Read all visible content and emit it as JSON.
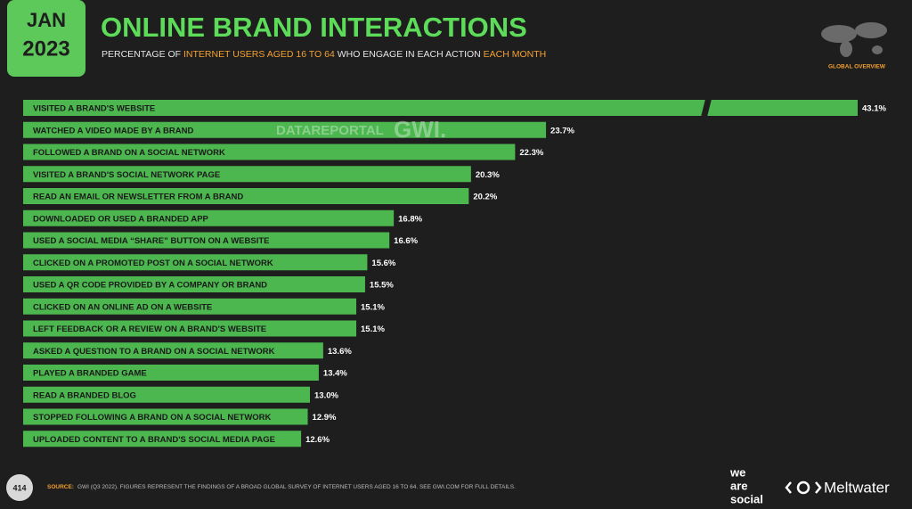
{
  "header": {
    "month": "JAN",
    "year": "2023",
    "title": "ONLINE BRAND INTERACTIONS",
    "subtitle": [
      "PERCENTAGE OF ",
      "INTERNET USERS AGED 16 TO 64",
      " WHO ENGAGE IN EACH ACTION ",
      "EACH MONTH"
    ],
    "region": "GLOBAL OVERVIEW"
  },
  "watermark": {
    "left": "DATAREPORTAL",
    "right": "GWI."
  },
  "chart_data": {
    "type": "bar",
    "orientation": "horizontal",
    "color": "#4cb74f",
    "categories": [
      "VISITED A BRAND'S WEBSITE",
      "WATCHED A VIDEO MADE BY A BRAND",
      "FOLLOWED A BRAND ON A SOCIAL NETWORK",
      "VISITED A BRAND'S SOCIAL NETWORK PAGE",
      "READ AN EMAIL OR NEWSLETTER FROM A BRAND",
      "DOWNLOADED OR USED A BRANDED APP",
      "USED A SOCIAL MEDIA “SHARE” BUTTON ON A WEBSITE",
      "CLICKED ON A PROMOTED POST ON A SOCIAL NETWORK",
      "USED A QR CODE PROVIDED BY A COMPANY OR BRAND",
      "CLICKED ON AN ONLINE AD ON A WEBSITE",
      "LEFT FEEDBACK OR A REVIEW ON A BRAND'S WEBSITE",
      "ASKED A QUESTION TO A BRAND ON A SOCIAL NETWORK",
      "PLAYED A BRANDED GAME",
      "READ A BRANDED BLOG",
      "STOPPED FOLLOWING A BRAND ON A SOCIAL NETWORK",
      "UPLOADED CONTENT TO A BRAND'S SOCIAL MEDIA PAGE"
    ],
    "values": [
      43.1,
      23.7,
      22.3,
      20.3,
      20.2,
      16.8,
      16.6,
      15.6,
      15.5,
      15.1,
      15.1,
      13.6,
      13.4,
      13.0,
      12.9,
      12.6
    ],
    "value_labels": [
      "43.1%",
      "23.7%",
      "22.3%",
      "20.3%",
      "20.2%",
      "16.8%",
      "16.6%",
      "15.6%",
      "15.5%",
      "15.1%",
      "15.1%",
      "13.6%",
      "13.4%",
      "13.0%",
      "12.9%",
      "12.6%"
    ]
  },
  "footer": {
    "page": "414",
    "source_label": "SOURCE:",
    "source": "GWI (Q3 2022). FIGURES REPRESENT THE FINDINGS OF A BROAD GLOBAL SURVEY OF INTERNET USERS AGED 16 TO 64. SEE GWI.COM FOR FULL DETAILS.",
    "brand1": [
      "we",
      "are",
      "social"
    ],
    "brand2": "Meltwater"
  }
}
